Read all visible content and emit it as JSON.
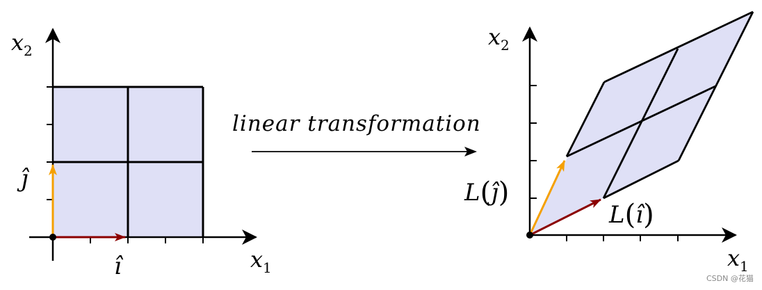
{
  "caption": "linear transformation",
  "left_panel": {
    "y_axis_label": {
      "base": "x",
      "sub": "2"
    },
    "x_axis_label": {
      "base": "x",
      "sub": "1"
    },
    "j_hat_label": "ĵ",
    "i_hat_label": "î"
  },
  "right_panel": {
    "y_axis_label": {
      "base": "x",
      "sub": "2"
    },
    "x_axis_label": {
      "base": "x",
      "sub": "1"
    },
    "Lj_label": {
      "fn": "L",
      "arg": "ĵ"
    },
    "Li_label": {
      "fn": "L",
      "arg": "î"
    }
  },
  "watermark": "CSDN @花猫",
  "colors": {
    "grid_fill": "#dfe0f6",
    "i_vector": "#8b0000",
    "j_vector": "#f5a000",
    "line": "#000000"
  },
  "icons": {
    "arrowheads": "triangle-arrowhead-icon",
    "origin": "origin-dot-icon"
  }
}
